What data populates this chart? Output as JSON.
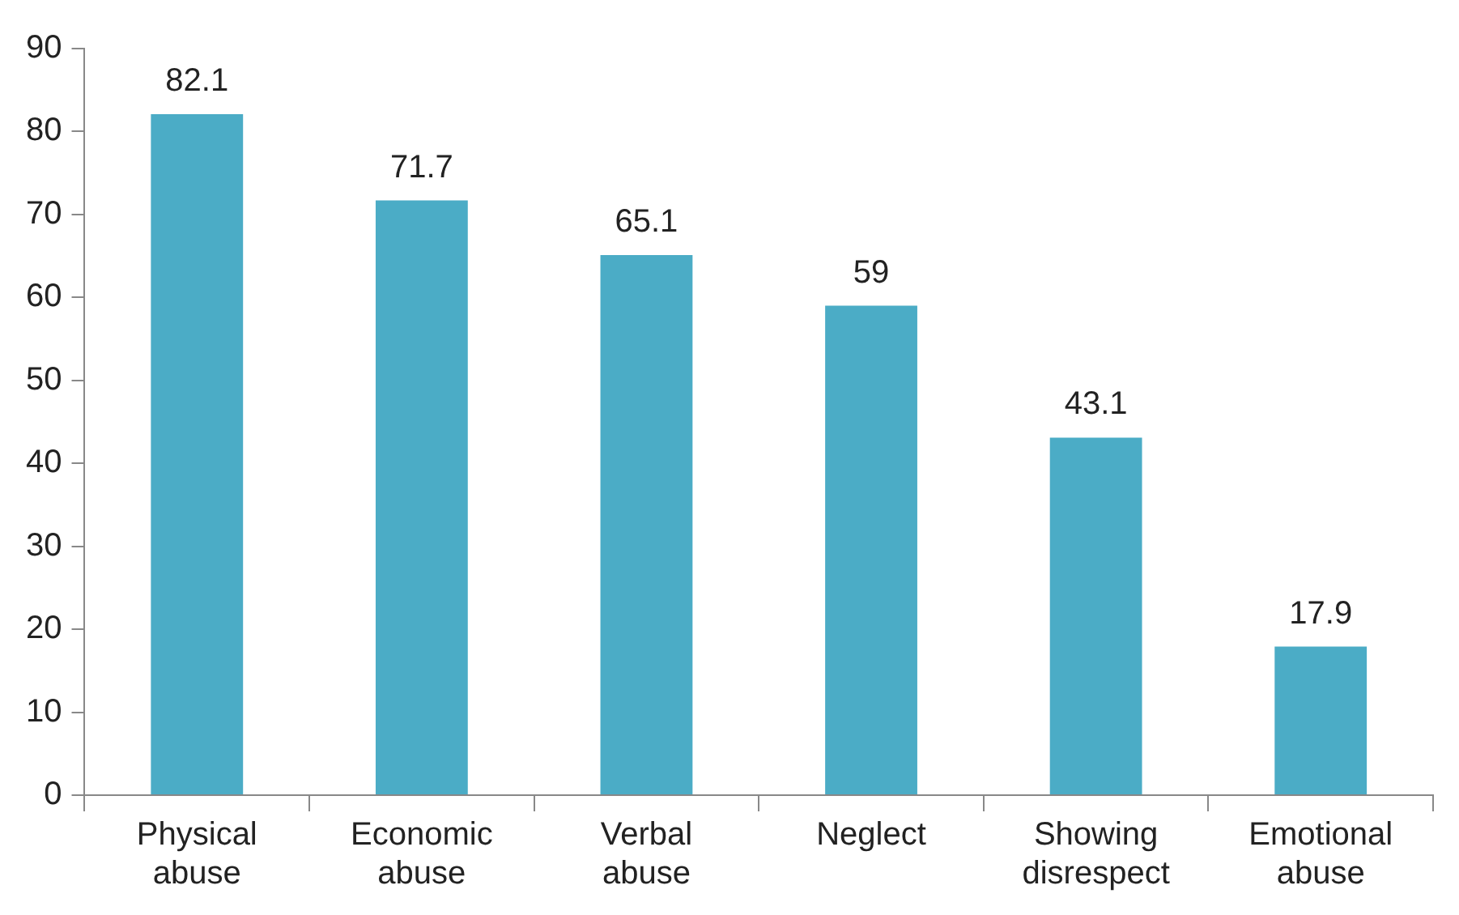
{
  "chart_data": {
    "type": "bar",
    "categories": [
      "Physical abuse",
      "Economic abuse",
      "Verbal abuse",
      "Neglect",
      "Showing disrespect",
      "Emotional abuse"
    ],
    "values": [
      82.1,
      71.7,
      65.1,
      59,
      43.1,
      17.9
    ],
    "color": "#4bacc6",
    "ylim": [
      0,
      90
    ],
    "yticks": [
      0,
      10,
      20,
      30,
      40,
      50,
      60,
      70,
      80,
      90
    ],
    "data_labels": true,
    "grid": false,
    "legend": false
  }
}
